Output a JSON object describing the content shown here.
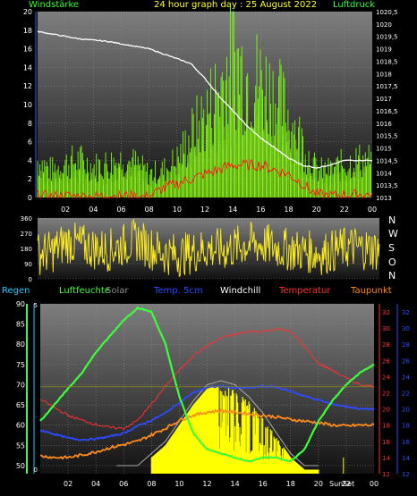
{
  "header": {
    "left": "Windstärke",
    "center": "24 hour graph day : 25 August 2022",
    "right": "Luftdruck"
  },
  "compass": [
    "N",
    "W",
    "S",
    "O",
    "N"
  ],
  "legend": [
    {
      "label": "Regen",
      "color": "#19c8ff"
    },
    {
      "label": "Luftfeuchte",
      "color": "#3cff3c"
    },
    {
      "label": "Solar",
      "color": "#8a8a8a"
    },
    {
      "label": "Temp. 5cm",
      "color": "#2d4bff"
    },
    {
      "label": "Windchill",
      "color": "#ffffff"
    },
    {
      "label": "Temperatur",
      "color": "#ff3030"
    },
    {
      "label": "Taupunkt",
      "color": "#ff8c1e"
    }
  ],
  "sun_markers": {
    "rise": "Sun",
    "set": "Set"
  },
  "chart_data": [
    {
      "type": "line",
      "title": "24 hour graph day : 25 August 2022",
      "xlabel": "",
      "ylabel": "Windstärke",
      "y2label": "Luftdruck",
      "x_ticks": [
        "02",
        "04",
        "06",
        "08",
        "10",
        "12",
        "14",
        "16",
        "18",
        "20",
        "22",
        "00"
      ],
      "xlim": [
        0,
        24
      ],
      "ylim": [
        0,
        20
      ],
      "y_ticks": [
        0,
        2,
        4,
        6,
        8,
        10,
        12,
        14,
        16,
        18,
        20
      ],
      "y2lim": [
        1013,
        1020.5
      ],
      "y2_ticks": [
        1013,
        1013.5,
        1014,
        1014.5,
        1015,
        1015.5,
        1016,
        1016.5,
        1017,
        1017.5,
        1018,
        1018.5,
        1019,
        1019.5,
        1020,
        1020.5
      ],
      "series": [
        {
          "name": "Luftdruck",
          "axis": "right",
          "color": "#ffffff",
          "x": [
            0,
            1,
            2,
            3,
            4,
            5,
            6,
            7,
            8,
            9,
            10,
            11,
            12,
            13,
            14,
            15,
            16,
            17,
            18,
            19,
            20,
            21,
            22,
            23,
            24
          ],
          "values": [
            1019.7,
            1019.6,
            1019.5,
            1019.4,
            1019.35,
            1019.3,
            1019.2,
            1019.1,
            1019.0,
            1018.8,
            1018.6,
            1018.4,
            1017.8,
            1017.1,
            1016.5,
            1015.9,
            1015.4,
            1015.0,
            1014.6,
            1014.3,
            1014.2,
            1014.3,
            1014.5,
            1014.5,
            1014.5
          ]
        },
        {
          "name": "Windgeschwindigkeit",
          "axis": "left",
          "color": "#88ff00",
          "x": [
            0,
            1,
            2,
            3,
            4,
            5,
            6,
            7,
            8,
            9,
            10,
            11,
            12,
            13,
            14,
            15,
            16,
            17,
            18,
            19,
            20,
            21,
            22,
            23,
            24
          ],
          "values": [
            2.5,
            2.0,
            2.2,
            2.5,
            2.0,
            2.3,
            3.0,
            2.5,
            1.5,
            2.0,
            3.0,
            4.5,
            6.0,
            7.5,
            9.0,
            8.5,
            8.0,
            7.0,
            6.0,
            4.0,
            2.0,
            2.0,
            2.5,
            2.8,
            3.0
          ]
        },
        {
          "name": "Windböen",
          "axis": "left",
          "color": "#88ff00",
          "x": [
            0,
            1,
            2,
            3,
            4,
            5,
            6,
            7,
            8,
            9,
            10,
            11,
            12,
            13,
            14,
            15,
            16,
            17,
            18,
            19,
            20,
            21,
            22,
            23,
            24
          ],
          "values": [
            5.5,
            4.0,
            5.0,
            5.5,
            4.5,
            5.0,
            5.5,
            5.0,
            3.5,
            4.0,
            5.5,
            9.0,
            12.0,
            16.0,
            20.5,
            18.0,
            17.0,
            15.0,
            12.0,
            8.0,
            4.0,
            4.0,
            5.0,
            5.5,
            5.5
          ]
        },
        {
          "name": "Wind Mittel",
          "axis": "left",
          "color": "#ff1a1a",
          "x": [
            0,
            1,
            2,
            3,
            4,
            5,
            6,
            7,
            8,
            9,
            10,
            11,
            12,
            13,
            14,
            15,
            16,
            17,
            18,
            19,
            20,
            21,
            22,
            23,
            24
          ],
          "values": [
            0.2,
            0.1,
            0.2,
            0.1,
            0.1,
            0.2,
            0.2,
            0.1,
            0.1,
            1.0,
            1.5,
            2.0,
            2.5,
            3.0,
            3.5,
            3.5,
            3.5,
            3.0,
            2.5,
            1.5,
            0.3,
            0.2,
            0.3,
            0.3,
            0.3
          ]
        }
      ]
    },
    {
      "type": "scatter",
      "ylabel": "Windrichtung",
      "xlim": [
        0,
        24
      ],
      "ylim": [
        0,
        360
      ],
      "y_ticks": [
        0,
        90,
        180,
        270,
        360
      ],
      "y_tick_labels": [
        "0",
        "90",
        "180",
        "270",
        "360"
      ],
      "series": [
        {
          "name": "Windrichtung",
          "color": "#ffee22",
          "x": [
            0,
            1,
            2,
            3,
            4,
            5,
            6,
            7,
            8,
            9,
            10,
            11,
            12,
            13,
            14,
            15,
            16,
            17,
            18,
            19,
            20,
            21,
            22,
            23,
            24
          ],
          "values": [
            150,
            160,
            220,
            200,
            180,
            170,
            200,
            230,
            180,
            150,
            140,
            160,
            180,
            170,
            190,
            210,
            200,
            180,
            170,
            160,
            150,
            170,
            190,
            180,
            170
          ]
        }
      ]
    },
    {
      "type": "line",
      "xlim": [
        0,
        24
      ],
      "x_ticks": [
        "02",
        "04",
        "06",
        "08",
        "10",
        "12",
        "14",
        "16",
        "18",
        "20",
        "22",
        "00"
      ],
      "ylabel": "Luftfeuchte",
      "ylim": [
        48,
        90
      ],
      "y_ticks": [
        50,
        55,
        60,
        65,
        70,
        75,
        80,
        85,
        90
      ],
      "y2label": "Temperatur",
      "y2lim": [
        12,
        33
      ],
      "y2_ticks": [
        12,
        14,
        16,
        18,
        20,
        22,
        24,
        26,
        28,
        30,
        32
      ],
      "regen_ticks": [
        0,
        5
      ],
      "series": [
        {
          "name": "Solar",
          "color": "#aaaaaa",
          "x": [
            5.5,
            7,
            8,
            9,
            10,
            11,
            12,
            13,
            14,
            15,
            16,
            17,
            18,
            19,
            20
          ],
          "values": [
            50,
            50,
            53,
            56,
            61,
            66,
            70,
            71,
            70,
            67,
            63,
            58,
            53,
            50,
            50
          ]
        },
        {
          "name": "Luftfeuchte",
          "color": "#3cff3c",
          "x": [
            0,
            1,
            2,
            3,
            4,
            5,
            6,
            7,
            8,
            9,
            10,
            11,
            12,
            13,
            14,
            15,
            16,
            17,
            18,
            19,
            20,
            21,
            22,
            23,
            24
          ],
          "values": [
            61,
            65,
            69,
            73,
            78,
            82,
            86,
            89,
            88,
            80,
            67,
            58,
            54,
            53,
            52,
            51,
            52,
            52,
            51,
            54,
            61,
            66,
            70,
            73,
            75
          ]
        },
        {
          "name": "Temp. 5cm",
          "color": "#2d4bff",
          "x": [
            0,
            1,
            2,
            3,
            4,
            5,
            6,
            7,
            8,
            9,
            10,
            11,
            12,
            13,
            14,
            15,
            16,
            17,
            18,
            19,
            20,
            21,
            22,
            23,
            24
          ],
          "values": [
            17.4,
            16.9,
            16.4,
            16.2,
            16.3,
            16.6,
            17.0,
            17.9,
            18.6,
            19.5,
            20.8,
            22.0,
            22.7,
            22.8,
            22.6,
            22.6,
            22.8,
            22.7,
            22.2,
            21.6,
            21.1,
            20.6,
            20.3,
            20.0,
            20.0
          ]
        },
        {
          "name": "Temperatur",
          "color": "#ff3030",
          "x": [
            0,
            1,
            2,
            3,
            4,
            5,
            6,
            7,
            8,
            9,
            10,
            11,
            12,
            13,
            14,
            15,
            16,
            17,
            18,
            19,
            20,
            21,
            22,
            23,
            24
          ],
          "values": [
            21.2,
            20.2,
            19.2,
            18.6,
            18.1,
            17.7,
            17.6,
            18.6,
            20.6,
            22.8,
            24.8,
            26.6,
            27.8,
            28.8,
            29.2,
            29.6,
            29.6,
            29.9,
            29.6,
            27.8,
            25.6,
            24.8,
            23.8,
            23.0,
            22.8
          ]
        },
        {
          "name": "Taupunkt",
          "color": "#ff8c1e",
          "x": [
            0,
            1,
            2,
            3,
            4,
            5,
            6,
            7,
            8,
            9,
            10,
            11,
            12,
            13,
            14,
            15,
            16,
            17,
            18,
            19,
            20,
            21,
            22,
            23,
            24
          ],
          "values": [
            14.2,
            14.0,
            14.0,
            14.3,
            14.7,
            15.2,
            15.6,
            16.0,
            16.8,
            17.6,
            18.6,
            19.2,
            19.6,
            19.8,
            19.6,
            19.4,
            19.2,
            19.0,
            18.7,
            18.5,
            18.3,
            18.0,
            17.9,
            18.0,
            18.0
          ]
        },
        {
          "name": "Windchill",
          "color": "#ffffff",
          "x": [
            0,
            1,
            2,
            3,
            4,
            5,
            6,
            7,
            8,
            9,
            10,
            11,
            12,
            13,
            14,
            15,
            16,
            17,
            18,
            19,
            20,
            21,
            22,
            23,
            24
          ],
          "values": [
            21.2,
            20.2,
            19.2,
            18.6,
            18.1,
            17.7,
            17.6,
            18.6,
            20.6,
            22.8,
            24.8,
            26.6,
            27.8,
            28.8,
            29.2,
            29.6,
            29.6,
            29.9,
            29.6,
            27.8,
            25.6,
            24.8,
            23.8,
            23.0,
            22.8
          ]
        }
      ]
    }
  ]
}
